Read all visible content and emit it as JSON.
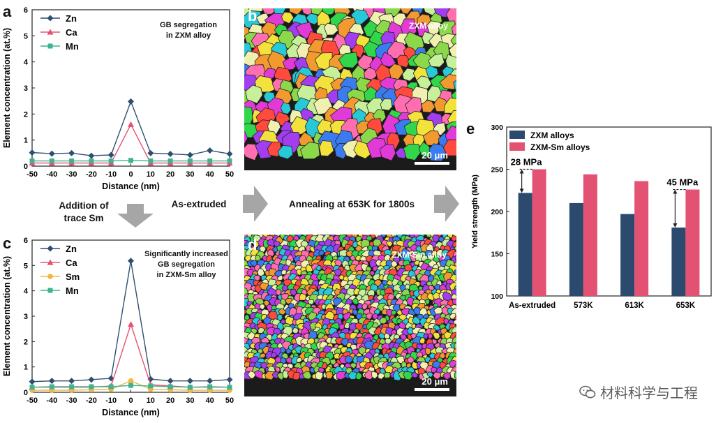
{
  "panels": {
    "a": "a",
    "b": "b",
    "c": "c",
    "d": "d",
    "e": "e"
  },
  "annotations": {
    "a_note_line1": "GB segregation",
    "a_note_line2": "in ZXM alloy",
    "c_note_line1": "Significantly increased",
    "c_note_line2": "GB segregation",
    "c_note_line3": "in ZXM-Sm alloy",
    "addition_line1": "Addition of",
    "addition_line2": "trace Sm",
    "as_extruded": "As-extruded",
    "annealing": "Annealing at 653K for 1800s"
  },
  "micrographs": {
    "b_label": "ZXM alloy",
    "d_label": "ZXM-Sm alloy",
    "scale_bar": "20 μm"
  },
  "watermark": "材料科学与工程",
  "colors": {
    "zn": "#2e4f70",
    "ca": "#e8506f",
    "sm": "#f0b840",
    "mn": "#3fb28f",
    "zxm_bar": "#2b4a6e",
    "zxmsm_bar": "#e35173",
    "arrow_gray": "#a6a6a6"
  },
  "chart_data": [
    {
      "id": "a",
      "type": "line",
      "title": "GB segregation in ZXM alloy",
      "xlabel": "Distance (nm)",
      "ylabel": "Element concentration (at.%)",
      "xlim": [
        -50,
        50
      ],
      "ylim": [
        0,
        6
      ],
      "x": [
        -50,
        -40,
        -30,
        -20,
        -10,
        0,
        10,
        20,
        30,
        40,
        50
      ],
      "xticks": [
        "-50",
        "-40",
        "-30",
        "-20",
        "-10",
        "0",
        "10",
        "20",
        "30",
        "40",
        "50"
      ],
      "yticks": [
        "0",
        "1",
        "2",
        "3",
        "4",
        "5",
        "6"
      ],
      "series": [
        {
          "name": "Zn",
          "marker": "diamond",
          "color": "#2e4f70",
          "values": [
            0.52,
            0.48,
            0.5,
            0.4,
            0.43,
            2.48,
            0.5,
            0.47,
            0.43,
            0.6,
            0.47
          ]
        },
        {
          "name": "Ca",
          "marker": "triangle",
          "color": "#e8506f",
          "values": [
            0.12,
            0.12,
            0.12,
            0.12,
            0.12,
            1.6,
            0.12,
            0.12,
            0.12,
            0.12,
            0.12
          ]
        },
        {
          "name": "Mn",
          "marker": "square",
          "color": "#3fb28f",
          "values": [
            0.2,
            0.2,
            0.2,
            0.2,
            0.2,
            0.22,
            0.2,
            0.2,
            0.2,
            0.2,
            0.2
          ]
        }
      ]
    },
    {
      "id": "c",
      "type": "line",
      "title": "Significantly increased GB segregation in ZXM-Sm alloy",
      "xlabel": "Distance (nm)",
      "ylabel": "Element concentration (at.%)",
      "xlim": [
        -50,
        50
      ],
      "ylim": [
        0,
        6
      ],
      "x": [
        -50,
        -40,
        -30,
        -20,
        -10,
        0,
        10,
        20,
        30,
        40,
        50
      ],
      "xticks": [
        "-50",
        "-40",
        "-30",
        "-20",
        "-10",
        "0",
        "10",
        "20",
        "30",
        "40",
        "50"
      ],
      "yticks": [
        "0",
        "1",
        "2",
        "3",
        "4",
        "5",
        "6"
      ],
      "series": [
        {
          "name": "Zn",
          "marker": "diamond",
          "color": "#2e4f70",
          "values": [
            0.42,
            0.45,
            0.45,
            0.5,
            0.55,
            5.18,
            0.52,
            0.45,
            0.45,
            0.45,
            0.5
          ]
        },
        {
          "name": "Ca",
          "marker": "triangle",
          "color": "#e8506f",
          "values": [
            0.2,
            0.2,
            0.2,
            0.2,
            0.25,
            2.68,
            0.3,
            0.25,
            0.2,
            0.2,
            0.2
          ]
        },
        {
          "name": "Sm",
          "marker": "circle",
          "color": "#f0b840",
          "values": [
            0.08,
            0.08,
            0.08,
            0.1,
            0.12,
            0.45,
            0.12,
            0.1,
            0.08,
            0.08,
            0.08
          ]
        },
        {
          "name": "Mn",
          "marker": "square",
          "color": "#3fb28f",
          "values": [
            0.2,
            0.22,
            0.22,
            0.22,
            0.22,
            0.27,
            0.25,
            0.22,
            0.2,
            0.22,
            0.2
          ]
        }
      ]
    },
    {
      "id": "e",
      "type": "bar",
      "title": "",
      "xlabel": "",
      "ylabel": "Yield strength (MPa)",
      "ylim": [
        100,
        300
      ],
      "yticks": [
        "100",
        "150",
        "200",
        "250",
        "300"
      ],
      "categories": [
        "As-extruded",
        "573K",
        "613K",
        "653K"
      ],
      "series": [
        {
          "name": "ZXM alloys",
          "color": "#2b4a6e",
          "values": [
            222,
            210,
            197,
            181
          ]
        },
        {
          "name": "ZXM-Sm alloys",
          "color": "#e35173",
          "values": [
            250,
            244,
            236,
            226
          ]
        }
      ],
      "annotations": [
        {
          "text": "28 MPa",
          "category": "As-extruded"
        },
        {
          "text": "45 MPa",
          "category": "653K"
        }
      ]
    }
  ]
}
